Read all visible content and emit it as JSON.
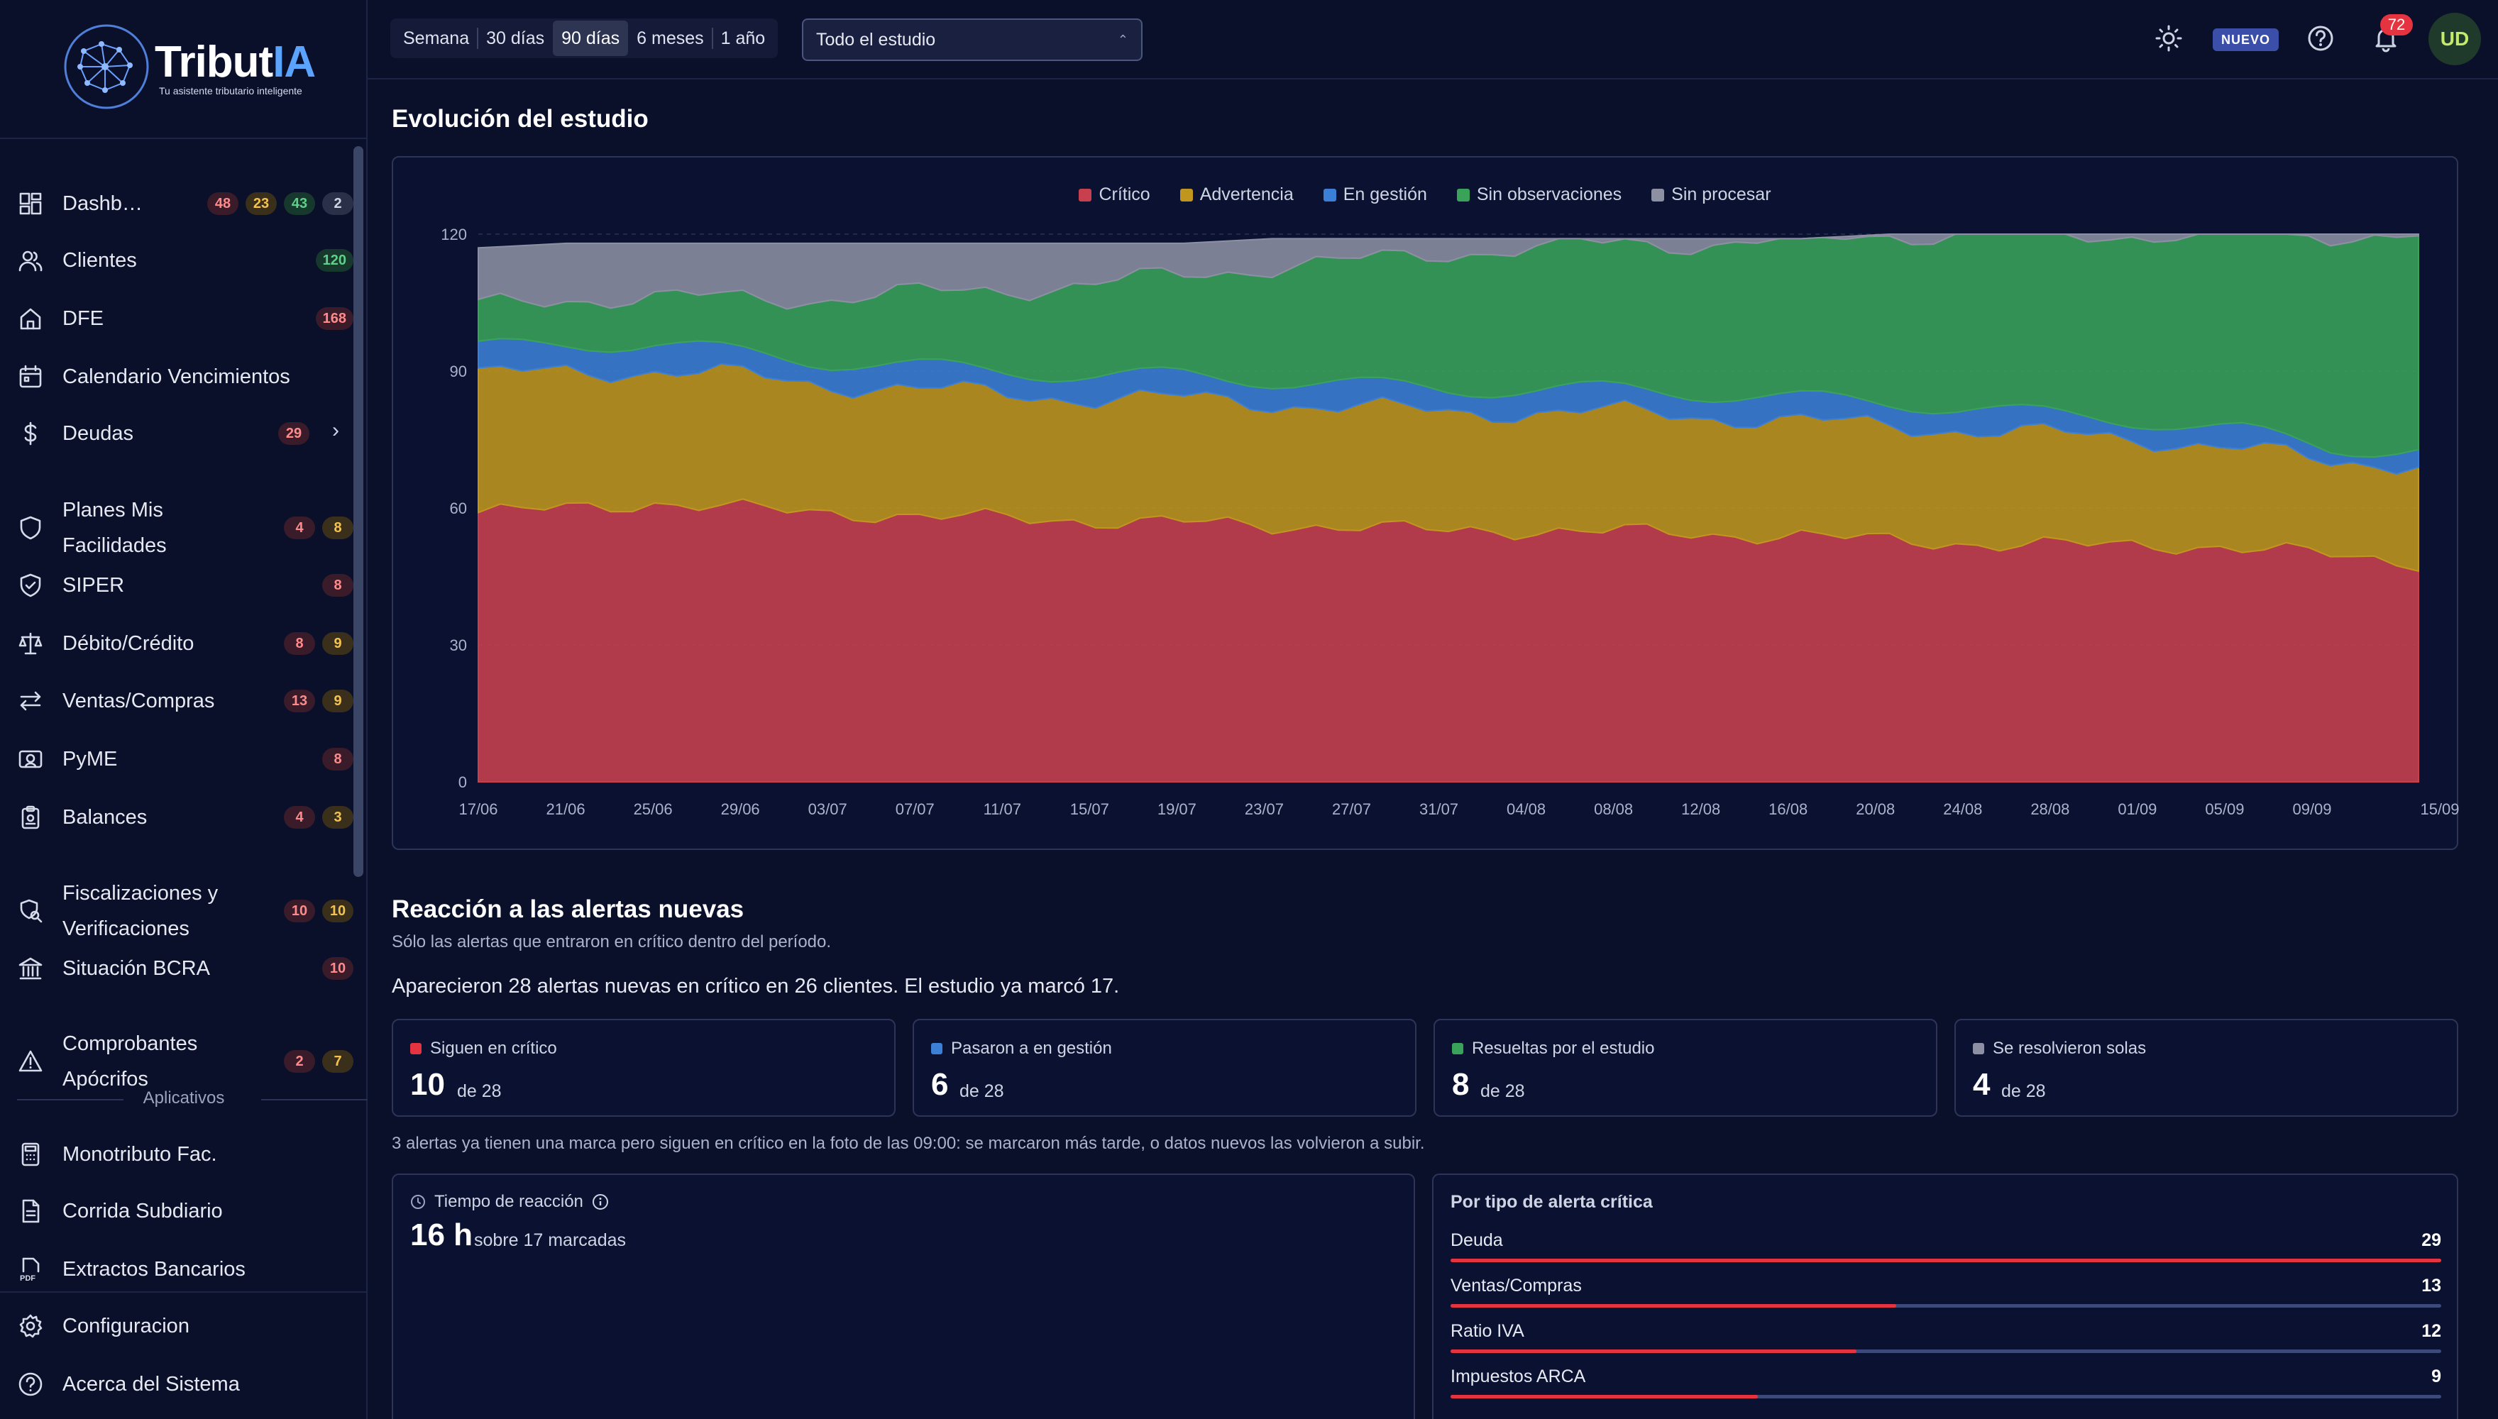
{
  "brand": {
    "name_prefix": "Tribut",
    "name_accent": "IA",
    "tagline": "Tu asistente tributario inteligente"
  },
  "sidebar": {
    "items": [
      {
        "label": "Dashb…",
        "icon": "dashboard-icon",
        "badges": [
          {
            "v": "48",
            "c": "red"
          },
          {
            "v": "23",
            "c": "yellow"
          },
          {
            "v": "43",
            "c": "green"
          },
          {
            "v": "2",
            "c": "gray"
          }
        ]
      },
      {
        "label": "Clientes",
        "icon": "users-icon",
        "badges": [
          {
            "v": "120",
            "c": "green"
          }
        ]
      },
      {
        "label": "DFE",
        "icon": "home-icon",
        "badges": [
          {
            "v": "168",
            "c": "red"
          }
        ]
      },
      {
        "label": "Calendario Vencimientos",
        "icon": "calendar-icon",
        "badges": []
      },
      {
        "label": "Deudas",
        "icon": "dollar-icon",
        "badges": [
          {
            "v": "29",
            "c": "red"
          }
        ],
        "chevron": true
      },
      {
        "label": "Planes Mis Facilidades",
        "icon": "shield-icon",
        "badges": [
          {
            "v": "4",
            "c": "red"
          },
          {
            "v": "8",
            "c": "yellow"
          }
        ]
      },
      {
        "label": "SIPER",
        "icon": "shield-check-icon",
        "badges": [
          {
            "v": "8",
            "c": "red"
          }
        ]
      },
      {
        "label": "Débito/Crédito",
        "icon": "scale-icon",
        "badges": [
          {
            "v": "8",
            "c": "red"
          },
          {
            "v": "9",
            "c": "yellow"
          }
        ]
      },
      {
        "label": "Ventas/Compras",
        "icon": "arrows-icon",
        "badges": [
          {
            "v": "13",
            "c": "red"
          },
          {
            "v": "9",
            "c": "yellow"
          }
        ]
      },
      {
        "label": "PyME",
        "icon": "id-card-icon",
        "badges": [
          {
            "v": "8",
            "c": "red"
          }
        ]
      },
      {
        "label": "Balances",
        "icon": "clipboard-icon",
        "badges": [
          {
            "v": "4",
            "c": "red"
          },
          {
            "v": "3",
            "c": "yellow"
          }
        ]
      },
      {
        "label": "Fiscalizaciones y Verificaciones",
        "icon": "search-shield-icon",
        "badges": [
          {
            "v": "10",
            "c": "red"
          },
          {
            "v": "10",
            "c": "yellow"
          }
        ]
      },
      {
        "label": "Situación BCRA",
        "icon": "bank-icon",
        "badges": [
          {
            "v": "10",
            "c": "red"
          }
        ]
      },
      {
        "label": "Comprobantes Apócrifos",
        "icon": "warning-icon",
        "badges": [
          {
            "v": "2",
            "c": "red"
          },
          {
            "v": "7",
            "c": "yellow"
          }
        ]
      }
    ],
    "section_label": "Aplicativos",
    "apps": [
      {
        "label": "Monotributo Fac.",
        "icon": "calculator-icon"
      },
      {
        "label": "Corrida Subdiario",
        "icon": "document-icon"
      },
      {
        "label": "Extractos Bancarios",
        "icon": "pdf-icon"
      }
    ],
    "bottom": [
      {
        "label": "Configuracion",
        "icon": "gear-icon"
      },
      {
        "label": "Acerca del Sistema",
        "icon": "help-circle-icon"
      }
    ]
  },
  "topbar": {
    "ranges": [
      "Semana",
      "30 días",
      "90 días",
      "6 meses",
      "1 año"
    ],
    "active_range": "90 días",
    "scope_select": "Todo el estudio",
    "nuevo": "NUEVO",
    "notifications": "72",
    "avatar": "UD"
  },
  "evolution": {
    "title": "Evolución del estudio"
  },
  "chart_data": {
    "type": "area",
    "stacked": true,
    "legend_position": "top-center",
    "grid": true,
    "ylim": [
      0,
      120
    ],
    "yticks": [
      0,
      30,
      60,
      90,
      120
    ],
    "x_tick_labels": [
      "17/06",
      "21/06",
      "25/06",
      "29/06",
      "03/07",
      "07/07",
      "11/07",
      "15/07",
      "19/07",
      "23/07",
      "27/07",
      "31/07",
      "04/08",
      "08/08",
      "12/08",
      "16/08",
      "20/08",
      "24/08",
      "28/08",
      "01/09",
      "05/09",
      "09/09",
      "15/09"
    ],
    "x_start": "17/06",
    "x_end": "15/09",
    "total": [
      117,
      118,
      118,
      118,
      118,
      118,
      118,
      118,
      118,
      119,
      119,
      119,
      119,
      119,
      119,
      119,
      120,
      120,
      120,
      120,
      120,
      120,
      120
    ],
    "series": [
      {
        "name": "Crítico",
        "color": "#c8404e",
        "values": [
          59,
          60,
          61,
          60,
          59,
          58,
          58,
          57,
          57,
          56,
          56,
          55,
          55,
          55,
          54,
          54,
          53,
          52,
          52,
          52,
          51,
          50,
          48
        ]
      },
      {
        "name": "Advertencia",
        "color": "#c0961f",
        "values": [
          30,
          30,
          29,
          29,
          28,
          28,
          27,
          27,
          27,
          27,
          26,
          26,
          26,
          26,
          26,
          25,
          25,
          25,
          24,
          23,
          22,
          20,
          22
        ]
      },
      {
        "name": "En gestión",
        "color": "#3c7fd6",
        "values": [
          6,
          6,
          6,
          5,
          5,
          5,
          5,
          5,
          5,
          5,
          5,
          5,
          5,
          5,
          5,
          5,
          5,
          5,
          4,
          4,
          4,
          3,
          3
        ]
      },
      {
        "name": "Sin observaciones",
        "color": "#3aa35a",
        "values": [
          9,
          10,
          10,
          12,
          14,
          16,
          18,
          20,
          22,
          25,
          27,
          30,
          31,
          32,
          33,
          35,
          37,
          38,
          40,
          41,
          43,
          47,
          47
        ]
      },
      {
        "name": "Sin procesar",
        "color": "#8c90a2",
        "values": [
          13,
          12,
          12,
          12,
          12,
          11,
          10,
          9,
          7,
          6,
          5,
          3,
          2,
          1,
          1,
          0,
          0,
          0,
          0,
          0,
          0,
          0,
          0
        ]
      }
    ]
  },
  "reaction": {
    "title": "Reacción a las alertas nuevas",
    "subtitle": "Sólo las alertas que entraron en crítico dentro del período.",
    "summary": "Aparecieron 28 alertas nuevas en crítico en 26 clientes. El estudio ya marcó 17.",
    "stats": [
      {
        "label": "Siguen en crítico",
        "value": "10",
        "of": "de 28",
        "color": "#e5343f"
      },
      {
        "label": "Pasaron a en gestión",
        "value": "6",
        "of": "de 28",
        "color": "#3c7fd6"
      },
      {
        "label": "Resueltas por el estudio",
        "value": "8",
        "of": "de 28",
        "color": "#3aa35a"
      },
      {
        "label": "Se resolvieron solas",
        "value": "4",
        "of": "de 28",
        "color": "#8c90a2"
      }
    ],
    "note": "3 alertas ya tienen una marca pero siguen en crítico en la foto de las 09:00: se marcaron más tarde, o datos nuevos las volvieron a subir.",
    "reaction_time": {
      "label": "Tiempo de reacción",
      "value": "16 h",
      "detail": "sobre 17 marcadas"
    },
    "by_type": {
      "title": "Por tipo de alerta crítica",
      "rows": [
        {
          "name": "Deuda",
          "count": "29",
          "fraction": 1.0
        },
        {
          "name": "Ventas/Compras",
          "count": "13",
          "fraction": 0.45
        },
        {
          "name": "Ratio IVA",
          "count": "12",
          "fraction": 0.41
        },
        {
          "name": "Impuestos ARCA",
          "count": "9",
          "fraction": 0.31
        }
      ]
    }
  }
}
